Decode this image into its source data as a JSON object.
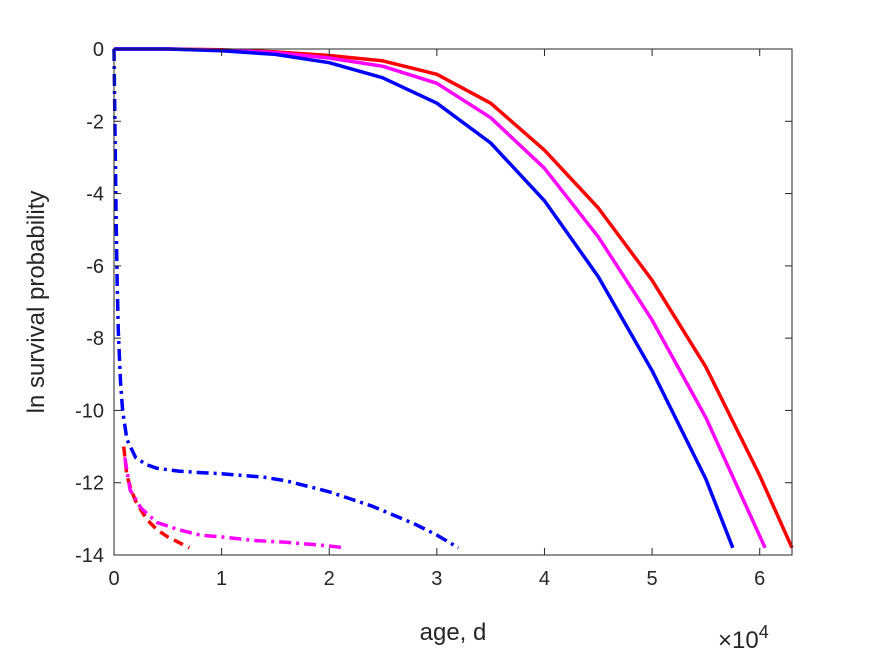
{
  "chart_data": {
    "type": "line",
    "title": "",
    "xlabel": "age, d",
    "ylabel": "ln survival probability",
    "x_multiplier_label": "×10",
    "x_multiplier_exponent": "4",
    "xlim": [
      0,
      63000
    ],
    "ylim": [
      -14,
      0
    ],
    "x_ticks": [
      0,
      10000,
      20000,
      30000,
      40000,
      50000,
      60000
    ],
    "x_tick_labels": [
      "0",
      "1",
      "2",
      "3",
      "4",
      "5",
      "6"
    ],
    "y_ticks": [
      0,
      -2,
      -4,
      -6,
      -8,
      -10,
      -12,
      -14
    ],
    "y_tick_labels": [
      "0",
      "-2",
      "-4",
      "-6",
      "-8",
      "-10",
      "-12",
      "-14"
    ],
    "grid": false,
    "legend": "none",
    "series": [
      {
        "color": "#ff0000",
        "style": "solid",
        "x": [
          0,
          100,
          5000,
          10000,
          15000,
          20000,
          25000,
          30000,
          35000,
          40000,
          45000,
          50000,
          55000,
          60000,
          63000
        ],
        "y": [
          -0.05,
          0,
          0,
          -0.02,
          -0.08,
          -0.18,
          -0.33,
          -0.7,
          -1.5,
          -2.8,
          -4.4,
          -6.4,
          -8.8,
          -11.8,
          -13.8
        ]
      },
      {
        "color": "#ff00ff",
        "style": "solid",
        "x": [
          0,
          100,
          5000,
          10000,
          15000,
          20000,
          25000,
          30000,
          35000,
          40000,
          45000,
          50000,
          55000,
          60500
        ],
        "y": [
          -0.05,
          0,
          0,
          -0.03,
          -0.1,
          -0.25,
          -0.48,
          -0.95,
          -1.9,
          -3.3,
          -5.2,
          -7.5,
          -10.2,
          -13.8
        ]
      },
      {
        "color": "#0000ff",
        "style": "solid",
        "x": [
          0,
          100,
          5000,
          10000,
          15000,
          20000,
          25000,
          30000,
          35000,
          40000,
          45000,
          50000,
          55000,
          57500
        ],
        "y": [
          -0.05,
          0,
          0,
          -0.05,
          -0.15,
          -0.38,
          -0.8,
          -1.5,
          -2.6,
          -4.2,
          -6.3,
          -8.9,
          -11.9,
          -13.8
        ]
      },
      {
        "color": "#ff0000",
        "style": "dashed",
        "x": [
          900,
          1200,
          1600,
          2000,
          3000,
          4000,
          5000,
          6000,
          7000
        ],
        "y": [
          -11.0,
          -11.8,
          -12.2,
          -12.5,
          -13.0,
          -13.3,
          -13.5,
          -13.65,
          -13.8
        ]
      },
      {
        "color": "#ff00ff",
        "style": "dashdot",
        "x": [
          1000,
          1500,
          2500,
          4000,
          6000,
          8000,
          10000,
          13000,
          16000,
          19000,
          21500
        ],
        "y": [
          -11.3,
          -12.2,
          -12.7,
          -13.1,
          -13.3,
          -13.45,
          -13.5,
          -13.6,
          -13.65,
          -13.72,
          -13.8
        ]
      },
      {
        "color": "#0000ff",
        "style": "dashdot",
        "x": [
          0,
          100,
          200,
          300,
          400,
          600,
          800,
          1200,
          2000,
          3000,
          4000,
          6000,
          8000,
          10000,
          12000,
          14000,
          16000,
          18000,
          20000,
          22000,
          24000,
          26000,
          28000,
          30000,
          32000
        ],
        "y": [
          0,
          -2.5,
          -4.8,
          -6.5,
          -7.8,
          -9.2,
          -10.0,
          -10.8,
          -11.3,
          -11.5,
          -11.6,
          -11.68,
          -11.72,
          -11.75,
          -11.8,
          -11.85,
          -11.95,
          -12.1,
          -12.25,
          -12.45,
          -12.65,
          -12.9,
          -13.15,
          -13.45,
          -13.8
        ]
      }
    ]
  }
}
